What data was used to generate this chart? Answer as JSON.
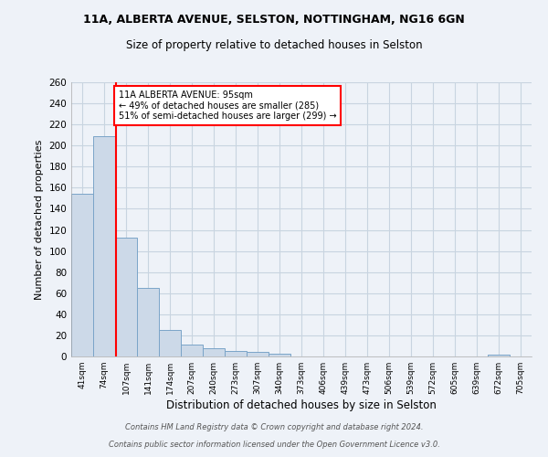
{
  "title1": "11A, ALBERTA AVENUE, SELSTON, NOTTINGHAM, NG16 6GN",
  "title2": "Size of property relative to detached houses in Selston",
  "xlabel": "Distribution of detached houses by size in Selston",
  "ylabel": "Number of detached properties",
  "bin_labels": [
    "41sqm",
    "74sqm",
    "107sqm",
    "141sqm",
    "174sqm",
    "207sqm",
    "240sqm",
    "273sqm",
    "307sqm",
    "340sqm",
    "373sqm",
    "406sqm",
    "439sqm",
    "473sqm",
    "506sqm",
    "539sqm",
    "572sqm",
    "605sqm",
    "639sqm",
    "672sqm",
    "705sqm"
  ],
  "bar_heights": [
    154,
    209,
    113,
    65,
    25,
    11,
    8,
    5,
    4,
    3,
    0,
    0,
    0,
    0,
    0,
    0,
    0,
    0,
    0,
    2,
    0
  ],
  "bar_color": "#ccd9e8",
  "bar_edge_color": "#7aa4c8",
  "grid_color": "#c8d4e0",
  "background_color": "#eef2f8",
  "red_line_x": 1.55,
  "annotation_text": "11A ALBERTA AVENUE: 95sqm\n← 49% of detached houses are smaller (285)\n51% of semi-detached houses are larger (299) →",
  "annotation_box_color": "white",
  "annotation_box_edge": "red",
  "footer1": "Contains HM Land Registry data © Crown copyright and database right 2024.",
  "footer2": "Contains public sector information licensed under the Open Government Licence v3.0.",
  "ylim": [
    0,
    260
  ],
  "yticks": [
    0,
    20,
    40,
    60,
    80,
    100,
    120,
    140,
    160,
    180,
    200,
    220,
    240,
    260
  ]
}
